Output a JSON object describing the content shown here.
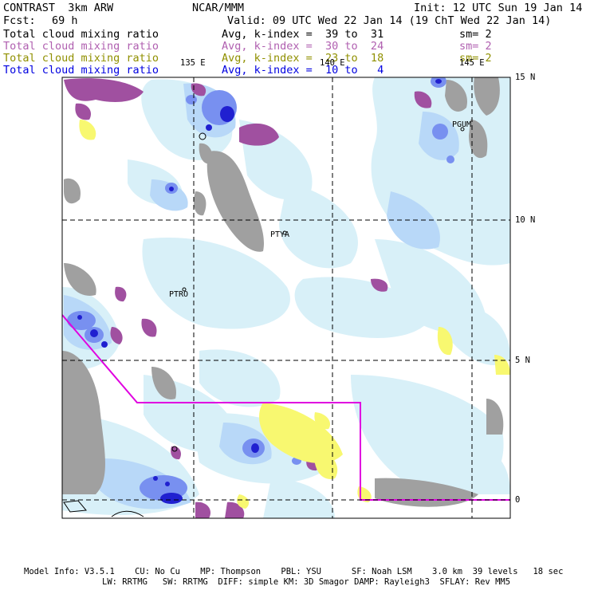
{
  "header": {
    "title": "CONTRAST  3km ARW",
    "org": "NCAR/MMM",
    "init": "Init: 12 UTC Sun 19 Jan 14",
    "fcst_label": "Fcst:",
    "fcst_value": "69 h",
    "valid": "Valid: 09 UTC Wed 22 Jan 14 (19 ChT Wed 22 Jan 14)"
  },
  "legend": [
    {
      "field": "Total cloud mixing ratio",
      "stat": "Avg, k-index =  39 to  31",
      "sm": "sm= 2",
      "color": "#000000"
    },
    {
      "field": "Total cloud mixing ratio",
      "stat": "Avg, k-index =  30 to  24",
      "sm": "sm= 2",
      "color": "#b060b0"
    },
    {
      "field": "Total cloud mixing ratio",
      "stat": "Avg, k-index =  23 to  18",
      "sm": "sm= 2",
      "color": "#909000"
    },
    {
      "field": "Total cloud mixing ratio",
      "stat": "Avg, k-index =  10 to   4",
      "sm": "",
      "color": "#0000e0"
    }
  ],
  "map": {
    "lon_labels": [
      "135 E",
      "140 E",
      "145 E"
    ],
    "lat_labels": [
      "15 N",
      "10 N",
      "5 N",
      "0"
    ],
    "stations": [
      "PGUM",
      "PTYA",
      "PTRO"
    ],
    "colors": {
      "land": "#a0a0a0",
      "cloud_light": "#d8f0f8",
      "cloud_mid": "#b8d8f8",
      "cloud_blue": "#7890f0",
      "cloud_deep": "#2020d0",
      "mid_purple": "#a050a0",
      "low_yellow": "#f8f870",
      "boundary": "#e000e0"
    }
  },
  "footer": {
    "line1": "Model Info: V3.5.1    CU: No Cu    MP: Thompson    PBL: YSU      SF: Noah LSM    3.0 km  39 levels   18 sec",
    "line2": "LW: RRTMG   SW: RRTMG  DIFF: simple KM: 3D Smagor DAMP: Rayleigh3  SFLAY: Rev MM5"
  }
}
